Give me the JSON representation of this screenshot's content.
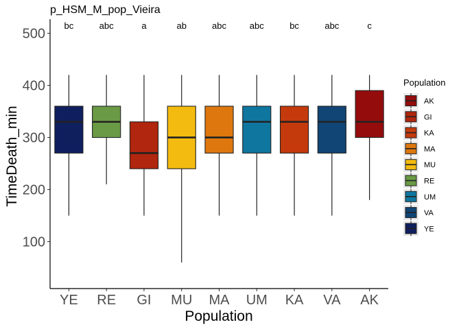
{
  "chart_data": {
    "type": "box",
    "title": "p_HSM_M_pop_Vieira",
    "xlabel": "Population",
    "ylabel": "TimeDeath_min",
    "ylim": [
      10,
      527
    ],
    "yticks": [
      100,
      200,
      300,
      400,
      500
    ],
    "categories": [
      "YE",
      "RE",
      "GI",
      "MU",
      "MA",
      "UM",
      "KA",
      "VA",
      "AK"
    ],
    "boxes": [
      {
        "name": "YE",
        "min": 150,
        "q1": 270,
        "median": 330,
        "q3": 360,
        "max": 420,
        "letter": "bc",
        "color": "#0f1f5e"
      },
      {
        "name": "RE",
        "min": 210,
        "q1": 300,
        "median": 330,
        "q3": 360,
        "max": 420,
        "letter": "abc",
        "color": "#6a9a45"
      },
      {
        "name": "GI",
        "min": 150,
        "q1": 240,
        "median": 270,
        "q3": 330,
        "max": 420,
        "letter": "a",
        "color": "#b0260e"
      },
      {
        "name": "MU",
        "min": 60,
        "q1": 240,
        "median": 300,
        "q3": 360,
        "max": 420,
        "letter": "ab",
        "color": "#f3bb0f"
      },
      {
        "name": "MA",
        "min": 150,
        "q1": 270,
        "median": 300,
        "q3": 360,
        "max": 420,
        "letter": "abc",
        "color": "#de780e"
      },
      {
        "name": "UM",
        "min": 150,
        "q1": 270,
        "median": 330,
        "q3": 360,
        "max": 420,
        "letter": "abc",
        "color": "#0f76a0"
      },
      {
        "name": "KA",
        "min": 150,
        "q1": 270,
        "median": 330,
        "q3": 360,
        "max": 420,
        "letter": "bc",
        "color": "#c43a0c"
      },
      {
        "name": "VA",
        "min": 150,
        "q1": 270,
        "median": 330,
        "q3": 360,
        "max": 420,
        "letter": "abc",
        "color": "#104575"
      },
      {
        "name": "AK",
        "min": 180,
        "q1": 300,
        "median": 330,
        "q3": 390,
        "max": 420,
        "letter": "c",
        "color": "#950c0c"
      }
    ],
    "legend": {
      "title": "Population",
      "position": "right",
      "entries": [
        {
          "label": "AK",
          "color": "#950c0c"
        },
        {
          "label": "GI",
          "color": "#b0260e"
        },
        {
          "label": "KA",
          "color": "#c43a0c"
        },
        {
          "label": "MA",
          "color": "#de780e"
        },
        {
          "label": "MU",
          "color": "#f3bb0f"
        },
        {
          "label": "RE",
          "color": "#6a9a45"
        },
        {
          "label": "UM",
          "color": "#0f76a0"
        },
        {
          "label": "VA",
          "color": "#104575"
        },
        {
          "label": "YE",
          "color": "#0f1f5e"
        }
      ]
    },
    "grid": false
  }
}
